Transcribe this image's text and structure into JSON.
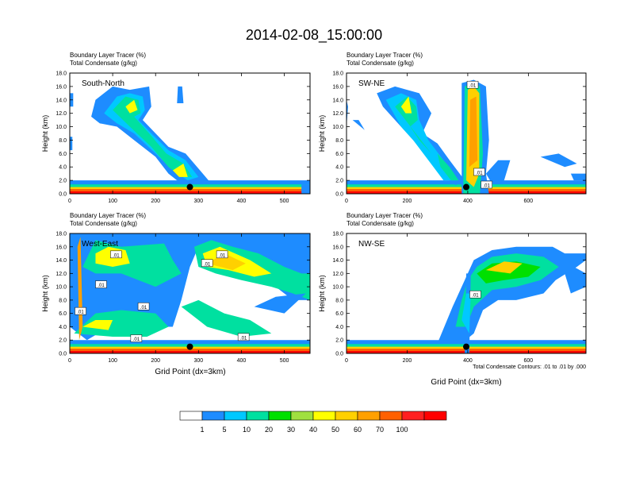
{
  "title": "2014-02-08_15:00:00",
  "panel_header": [
    "Boundary Layer Tracer   (%)",
    "Total Condensate   (g/kg)"
  ],
  "contour_note": "Total Condensate Contours: .01 to .01 by .000",
  "x_axis_label": "Grid Point (dx=3km)",
  "y_axis_label": "Height (km)",
  "colorbar": {
    "colors": [
      "#ffffff",
      "#1e8cff",
      "#00c8ff",
      "#00e0a0",
      "#00e000",
      "#a0e040",
      "#ffff00",
      "#ffd000",
      "#ffa000",
      "#ff6000",
      "#ff2020",
      "#ff0000"
    ],
    "labels": [
      "1",
      "5",
      "10",
      "20",
      "30",
      "40",
      "50",
      "60",
      "70",
      "100"
    ]
  },
  "chart_data": [
    {
      "type": "heatmap",
      "name": "South-North",
      "xlim": [
        0,
        560
      ],
      "ylim": [
        0,
        18
      ],
      "xticks": [
        "0",
        "100",
        "200",
        "300",
        "400",
        "500"
      ],
      "yticks": [
        "0.0",
        "2.0",
        "4.0",
        "6.0",
        "8.0",
        "10.0",
        "12.0",
        "14.0",
        "16.0",
        "18.0"
      ],
      "marker": {
        "x": 280,
        "y": 1.0
      },
      "contour_labels": []
    },
    {
      "type": "heatmap",
      "name": "SW-NE",
      "xlim": [
        0,
        790
      ],
      "ylim": [
        0,
        18
      ],
      "xticks": [
        "0",
        "200",
        "400",
        "600"
      ],
      "yticks": [
        "0.0",
        "2.0",
        "4.0",
        "6.0",
        "8.0",
        "10.0",
        "12.0",
        "14.0",
        "16.0",
        "18.0"
      ],
      "marker": {
        "x": 395,
        "y": 1.0
      },
      "contour_labels": [
        {
          "text": ".01",
          "x": 416,
          "y": 16.2
        },
        {
          "text": ".01",
          "x": 438,
          "y": 3.2
        },
        {
          "text": ".01",
          "x": 462,
          "y": 1.3
        }
      ]
    },
    {
      "type": "heatmap",
      "name": "West-East",
      "xlim": [
        0,
        560
      ],
      "ylim": [
        0,
        18
      ],
      "xticks": [
        "0",
        "100",
        "200",
        "300",
        "400",
        "500"
      ],
      "yticks": [
        "0.0",
        "2.0",
        "4.0",
        "6.0",
        "8.0",
        "10.0",
        "12.0",
        "14.0",
        "16.0",
        "18.0"
      ],
      "marker": {
        "x": 280,
        "y": 1.0
      },
      "contour_labels": [
        {
          "text": ".01",
          "x": 108,
          "y": 14.8
        },
        {
          "text": ".01",
          "x": 73,
          "y": 10.3
        },
        {
          "text": ".01",
          "x": 25,
          "y": 6.3
        },
        {
          "text": ".01",
          "x": 172,
          "y": 7.0
        },
        {
          "text": ".01",
          "x": 155,
          "y": 2.2
        },
        {
          "text": ".01",
          "x": 320,
          "y": 13.5
        },
        {
          "text": ".01",
          "x": 355,
          "y": 14.8
        },
        {
          "text": ".01",
          "x": 405,
          "y": 2.4
        }
      ]
    },
    {
      "type": "heatmap",
      "name": "NW-SE",
      "xlim": [
        0,
        790
      ],
      "ylim": [
        0,
        18
      ],
      "xticks": [
        "0",
        "200",
        "400",
        "600"
      ],
      "yticks": [
        "0.0",
        "2.0",
        "4.0",
        "6.0",
        "8.0",
        "10.0",
        "12.0",
        "14.0",
        "16.0",
        "18.0"
      ],
      "marker": {
        "x": 395,
        "y": 1.0
      },
      "contour_labels": [
        {
          "text": ".01",
          "x": 425,
          "y": 8.8
        }
      ]
    }
  ]
}
